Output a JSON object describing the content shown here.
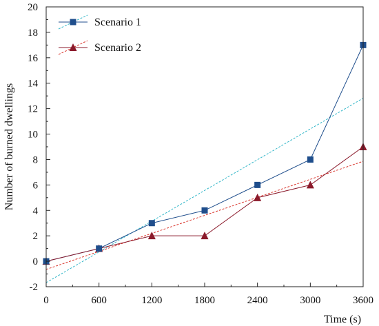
{
  "chart_data": {
    "type": "line",
    "xlabel": "Time (s)",
    "ylabel": "Number of burned dwellings",
    "xlim": [
      0,
      3600
    ],
    "ylim": [
      -2,
      20
    ],
    "x_ticks": [
      0,
      600,
      1200,
      1800,
      2400,
      3000,
      3600
    ],
    "y_ticks": [
      -2,
      0,
      2,
      4,
      6,
      8,
      10,
      12,
      14,
      16,
      18,
      20
    ],
    "x": [
      0,
      600,
      1200,
      1800,
      2400,
      3000,
      3600
    ],
    "series": [
      {
        "name": "Scenario 1",
        "values": [
          0,
          1,
          3,
          4,
          6,
          8,
          17
        ],
        "color": "#1f4e8c",
        "marker": "square",
        "trend_color": "#33b7c9",
        "trend": [
          -1.68,
          12.82
        ]
      },
      {
        "name": "Scenario 2",
        "values": [
          0,
          1,
          2,
          2,
          5,
          6,
          9
        ],
        "color": "#8b1a2b",
        "marker": "triangle",
        "trend_color": "#d9342b",
        "trend": [
          -0.64,
          7.86
        ]
      }
    ],
    "legend": "top-left",
    "grid": false
  }
}
